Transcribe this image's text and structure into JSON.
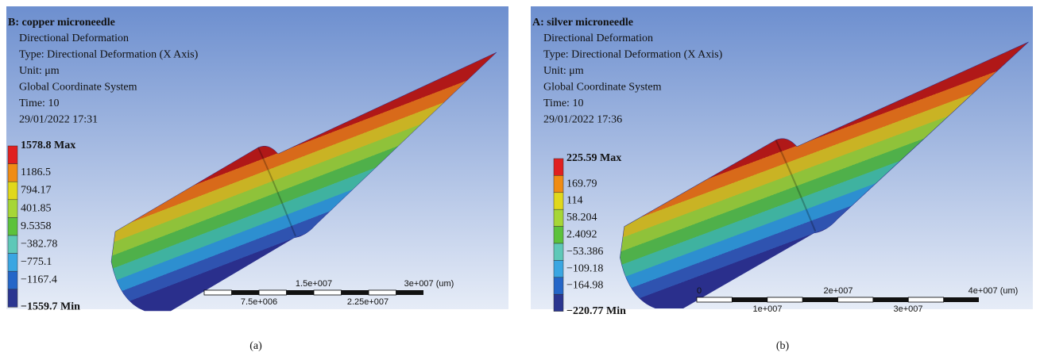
{
  "panels": [
    {
      "title": "B: copper microneedle",
      "lines": [
        "Directional Deformation",
        "Type: Directional Deformation (X Axis)",
        "Unit: μm",
        "Global Coordinate System",
        "Time: 10",
        "29/01/2022 17:31"
      ],
      "legend": [
        "1578.8 Max",
        "1186.5",
        "794.17",
        "401.85",
        "9.5358",
        "−382.78",
        "−775.1",
        "−1167.4",
        "−1559.7 Min"
      ],
      "scale_top": [
        "1.5e+007",
        "3e+007 (um)"
      ],
      "scale_bottom": [
        "7.5e+006",
        "2.25e+007"
      ],
      "caption": "(a)"
    },
    {
      "title": "A: silver microneedle",
      "lines": [
        "Directional Deformation",
        "Type: Directional Deformation (X Axis)",
        "Unit: μm",
        "Global Coordinate System",
        "Time: 10",
        "29/01/2022 17:36"
      ],
      "legend": [
        "225.59 Max",
        "169.79",
        "114",
        "58.204",
        "2.4092",
        "−53.386",
        "−109.18",
        "−164.98",
        "−220.77 Min"
      ],
      "scale_top": [
        "0",
        "2e+007",
        "4e+007 (um)"
      ],
      "scale_bottom": [
        "1e+007",
        "3e+007"
      ],
      "caption": "(b)"
    }
  ]
}
